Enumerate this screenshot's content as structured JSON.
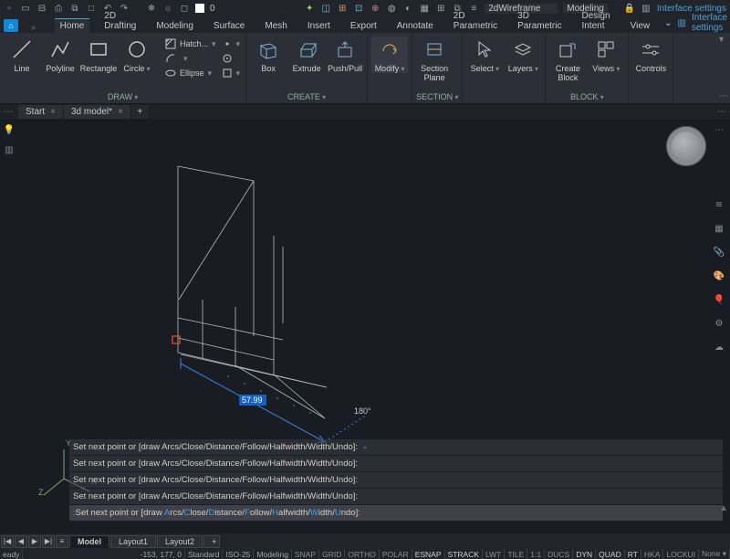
{
  "qat": {
    "layer_index": "0",
    "visual_style": "2dWireframe",
    "workspace": "Modeling",
    "link_text": "Interface settings"
  },
  "menu": {
    "tabs": [
      "Home",
      "2D Drafting",
      "Modeling",
      "Surface",
      "Mesh",
      "Insert",
      "Export",
      "Annotate",
      "2D Parametric",
      "3D Parametric",
      "Design Intent",
      "View"
    ],
    "active": 0,
    "link_text": "Interface settings"
  },
  "ribbon": {
    "groups": {
      "draw": {
        "label": "DRAW",
        "big": [
          {
            "n": "line",
            "l": "Line"
          },
          {
            "n": "polyline",
            "l": "Polyline"
          },
          {
            "n": "rectangle",
            "l": "Rectangle"
          },
          {
            "n": "circle",
            "l": "Circle"
          }
        ],
        "mini": [
          "Hatch...",
          "",
          "Ellipse"
        ]
      },
      "create": {
        "label": "CREATE",
        "big": [
          {
            "n": "box",
            "l": "Box"
          },
          {
            "n": "extrude",
            "l": "Extrude"
          },
          {
            "n": "pushpull",
            "l": "Push/Pull"
          }
        ]
      },
      "modify": {
        "label": "",
        "l": "Modify"
      },
      "section": {
        "label": "SECTION",
        "l": "Section\nPlane"
      },
      "select": {
        "l": "Select"
      },
      "layers": {
        "l": "Layers"
      },
      "block": {
        "label": "BLOCK",
        "big": [
          {
            "n": "createblock",
            "l": "Create\nBlock"
          },
          {
            "n": "views",
            "l": "Views"
          }
        ]
      },
      "controls": {
        "l": "Controls"
      }
    }
  },
  "doctabs": [
    {
      "t": "Start",
      "c": true
    },
    {
      "t": "3d model*",
      "c": true
    }
  ],
  "viewport": {
    "dim_value": "57.99",
    "angle_value": "180°",
    "ucs": {
      "x": "X",
      "y": "Y",
      "z": "Z"
    }
  },
  "cmd": {
    "prefixes": [
      "",
      "",
      "",
      "",
      ""
    ],
    "line_plain": "Set next point or [draw Arcs/Close/Distance/Follow/Halfwidth/Width/Undo]:",
    "active_prefix": "Set next point or [draw ",
    "opts": [
      "Arcs",
      "Close",
      "Distance",
      "Follow",
      "Halfwidth",
      "Width",
      "Undo"
    ],
    "active_suffix": "]:"
  },
  "layouts": {
    "nav": [
      "|◀",
      "◀",
      "▶",
      "▶|"
    ],
    "sep": "≡",
    "tabs": [
      "Model",
      "Layout1",
      "Layout2"
    ],
    "add": "+"
  },
  "status": {
    "ready": "eady",
    "coords": "-153, 177, 0",
    "cells": [
      "Standard",
      "ISO-25",
      "Modeling"
    ],
    "toggles": [
      "SNAP",
      "GRID",
      "ORTHO",
      "POLAR",
      "ESNAP",
      "STRACK",
      "LWT",
      "TILE",
      "1:1",
      "DUCS",
      "DYN",
      "QUAD",
      "RT",
      "HKA",
      "LOCKUI",
      "None ▾"
    ],
    "on": [
      "ESNAP",
      "STRACK",
      "DYN",
      "QUAD",
      "RT"
    ]
  },
  "colors": {
    "accent": "#4ba3d6",
    "dim_bg": "#1560c4",
    "wire": "#b8bbc2",
    "cmd_hl": "#3aa4e8"
  }
}
